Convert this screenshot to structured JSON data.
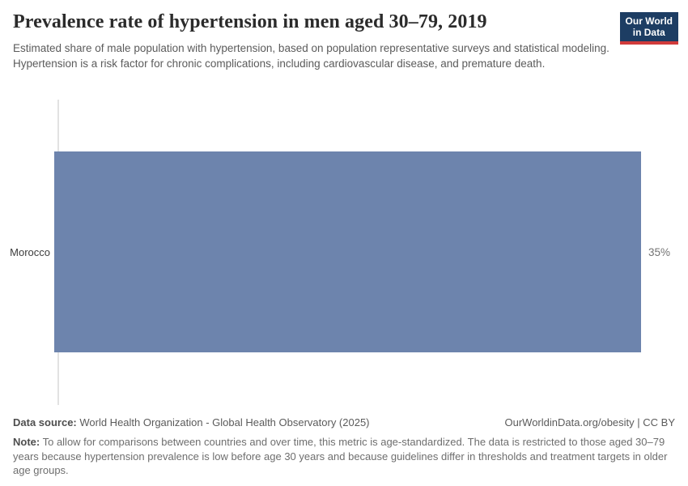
{
  "header": {
    "title": "Prevalence rate of hypertension in men aged 30–79, 2019",
    "subtitle": "Estimated share of male population with hypertension, based on population representative surveys and statistical modeling. Hypertension is a risk factor for chronic complications, including cardiovascular disease, and premature death.",
    "logo": {
      "line1": "Our World",
      "line2": "in Data"
    }
  },
  "chart_data": {
    "type": "bar",
    "orientation": "horizontal",
    "title": "Prevalence rate of hypertension in men aged 30–79, 2019",
    "categories": [
      "Morocco"
    ],
    "values": [
      35
    ],
    "value_labels": [
      "35%"
    ],
    "unit": "%",
    "xlabel": "",
    "ylabel": "",
    "xlim": [
      0,
      35
    ],
    "grid": false,
    "legend": false,
    "bar_color": "#6d84ad"
  },
  "footer": {
    "source_label": "Data source:",
    "source_text": " World Health Organization - Global Health Observatory (2025)",
    "license_text": "OurWorldinData.org/obesity | CC BY",
    "note_label": "Note:",
    "note_text": " To allow for comparisons between countries and over time, this metric is age-standardized. The data is restricted to those aged 30–79 years because hypertension prevalence is low before age 30 years and because guidelines differ in thresholds and treatment targets in older age groups."
  },
  "colors": {
    "bar": "#6d84ad",
    "logo_navy": "#1d3d63",
    "logo_red": "#d13b3b",
    "axis_line": "#e2e2e2"
  }
}
